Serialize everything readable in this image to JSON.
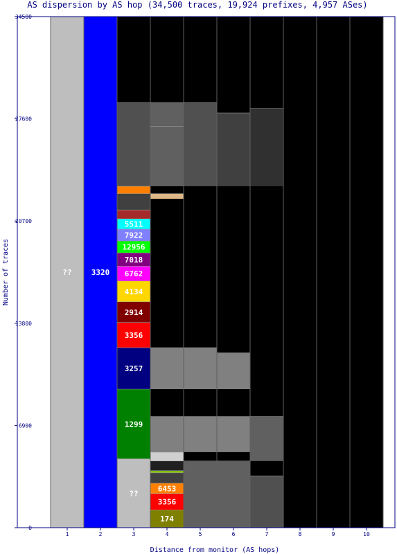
{
  "chart_data": {
    "type": "bar",
    "title": "AS dispersion by AS hop (34,500 traces, 19,924 prefixes, 4,957 ASes)",
    "xlabel": "Distance from monitor (AS hops)",
    "ylabel": "Number of traces",
    "ylim": [
      0,
      34500
    ],
    "yticks": [
      "0",
      "6900",
      "13800",
      "20700",
      "27600",
      "34500"
    ],
    "categories": [
      "1",
      "2",
      "3",
      "4",
      "5",
      "6",
      "7",
      "8",
      "9",
      "10"
    ],
    "background_color": "#000000",
    "bars": [
      {
        "hop": "1",
        "segments": [
          {
            "label": "??",
            "start": 0,
            "end": 34500,
            "color": "#bebebe",
            "text_color": "#ffffff"
          }
        ]
      },
      {
        "hop": "2",
        "segments": [
          {
            "label": "3320",
            "start": 0,
            "end": 34500,
            "color": "#0000ff",
            "text_color": "#ffffff"
          }
        ]
      },
      {
        "hop": "3",
        "segments": [
          {
            "label": "??",
            "start": 0,
            "end": 4650,
            "color": "#bebebe",
            "text_color": "#ffffff"
          },
          {
            "label": "1299",
            "start": 4650,
            "end": 9350,
            "color": "#008000",
            "text_color": "#ffffff"
          },
          {
            "label": "3257",
            "start": 9350,
            "end": 12150,
            "color": "#000080",
            "text_color": "#ffffff"
          },
          {
            "label": "3356",
            "start": 12150,
            "end": 13850,
            "color": "#ff0000",
            "text_color": "#ffffff"
          },
          {
            "label": "2914",
            "start": 13850,
            "end": 15250,
            "color": "#800000",
            "text_color": "#ffffff"
          },
          {
            "label": "4134",
            "start": 15250,
            "end": 16650,
            "color": "#ffd700",
            "text_color": "#ffffff"
          },
          {
            "label": "6762",
            "start": 16650,
            "end": 17650,
            "color": "#ff00ff",
            "text_color": "#ffffff"
          },
          {
            "label": "7018",
            "start": 17650,
            "end": 18550,
            "color": "#800080",
            "text_color": "#ffffff"
          },
          {
            "label": "12956",
            "start": 18550,
            "end": 19350,
            "color": "#00ff00",
            "text_color": "#ffffff"
          },
          {
            "label": "7922",
            "start": 19350,
            "end": 20150,
            "color": "#8080ff",
            "text_color": "#ffffff"
          },
          {
            "label": "5511",
            "start": 20150,
            "end": 20850,
            "color": "#00ffff",
            "text_color": "#ffffff"
          },
          {
            "label": "",
            "start": 20850,
            "end": 21450,
            "color": "#a52a2a",
            "text_color": "#ffffff"
          },
          {
            "label": "",
            "start": 21450,
            "end": 22550,
            "color": "#404040",
            "text_color": "#ffffff"
          },
          {
            "label": "",
            "start": 22550,
            "end": 23050,
            "color": "#ff8000",
            "text_color": "#ffffff"
          },
          {
            "label": "",
            "start": 23050,
            "end": 28700,
            "color": "#505050",
            "text_color": "#ffffff"
          }
        ]
      },
      {
        "hop": "4",
        "segments": [
          {
            "label": "174",
            "start": 0,
            "end": 1200,
            "color": "#808000",
            "text_color": "#ffffff"
          },
          {
            "label": "3356",
            "start": 1200,
            "end": 2300,
            "color": "#ff0000",
            "text_color": "#ffffff"
          },
          {
            "label": "6453",
            "start": 2300,
            "end": 3000,
            "color": "#ff8000",
            "text_color": "#ffffff"
          },
          {
            "label": "",
            "start": 3000,
            "end": 3700,
            "color": "#404040",
            "text_color": "#ffffff"
          },
          {
            "label": "",
            "start": 3700,
            "end": 3850,
            "color": "#80c000",
            "text_color": "#ffffff"
          },
          {
            "label": "",
            "start": 3850,
            "end": 4500,
            "color": "#202020",
            "text_color": "#ffffff"
          },
          {
            "label": "",
            "start": 4500,
            "end": 5100,
            "color": "#d0d0d0",
            "text_color": "#ffffff"
          },
          {
            "label": "",
            "start": 5100,
            "end": 7500,
            "color": "#808080",
            "text_color": "#ffffff"
          },
          {
            "label": "",
            "start": 9350,
            "end": 12150,
            "color": "#808080",
            "text_color": "#ffffff"
          },
          {
            "label": "",
            "start": 22200,
            "end": 22550,
            "color": "#deb887",
            "text_color": "#ffffff"
          },
          {
            "label": "",
            "start": 27000,
            "end": 27100,
            "color": "#c04040",
            "text_color": "#ffffff"
          },
          {
            "label": "",
            "start": 23050,
            "end": 28700,
            "color": "#606060",
            "text_color": "#ffffff"
          }
        ]
      },
      {
        "hop": "5",
        "segments": [
          {
            "label": "",
            "start": 0,
            "end": 4500,
            "color": "#606060",
            "text_color": "#ffffff"
          },
          {
            "label": "",
            "start": 5100,
            "end": 7500,
            "color": "#808080",
            "text_color": "#ffffff"
          },
          {
            "label": "",
            "start": 9350,
            "end": 12150,
            "color": "#808080",
            "text_color": "#ffffff"
          },
          {
            "label": "",
            "start": 23050,
            "end": 28700,
            "color": "#505050",
            "text_color": "#ffffff"
          }
        ]
      },
      {
        "hop": "6",
        "segments": [
          {
            "label": "",
            "start": 0,
            "end": 4500,
            "color": "#606060",
            "text_color": "#ffffff"
          },
          {
            "label": "",
            "start": 5100,
            "end": 7500,
            "color": "#808080",
            "text_color": "#ffffff"
          },
          {
            "label": "",
            "start": 9350,
            "end": 11800,
            "color": "#808080",
            "text_color": "#ffffff"
          },
          {
            "label": "",
            "start": 23050,
            "end": 28000,
            "color": "#404040",
            "text_color": "#ffffff"
          }
        ]
      },
      {
        "hop": "7",
        "segments": [
          {
            "label": "",
            "start": 0,
            "end": 3500,
            "color": "#505050",
            "text_color": "#ffffff"
          },
          {
            "label": "",
            "start": 4500,
            "end": 7500,
            "color": "#606060",
            "text_color": "#ffffff"
          },
          {
            "label": "",
            "start": 23050,
            "end": 28300,
            "color": "#303030",
            "text_color": "#ffffff"
          }
        ]
      },
      {
        "hop": "8",
        "segments": []
      },
      {
        "hop": "9",
        "segments": []
      },
      {
        "hop": "10",
        "segments": []
      }
    ]
  }
}
